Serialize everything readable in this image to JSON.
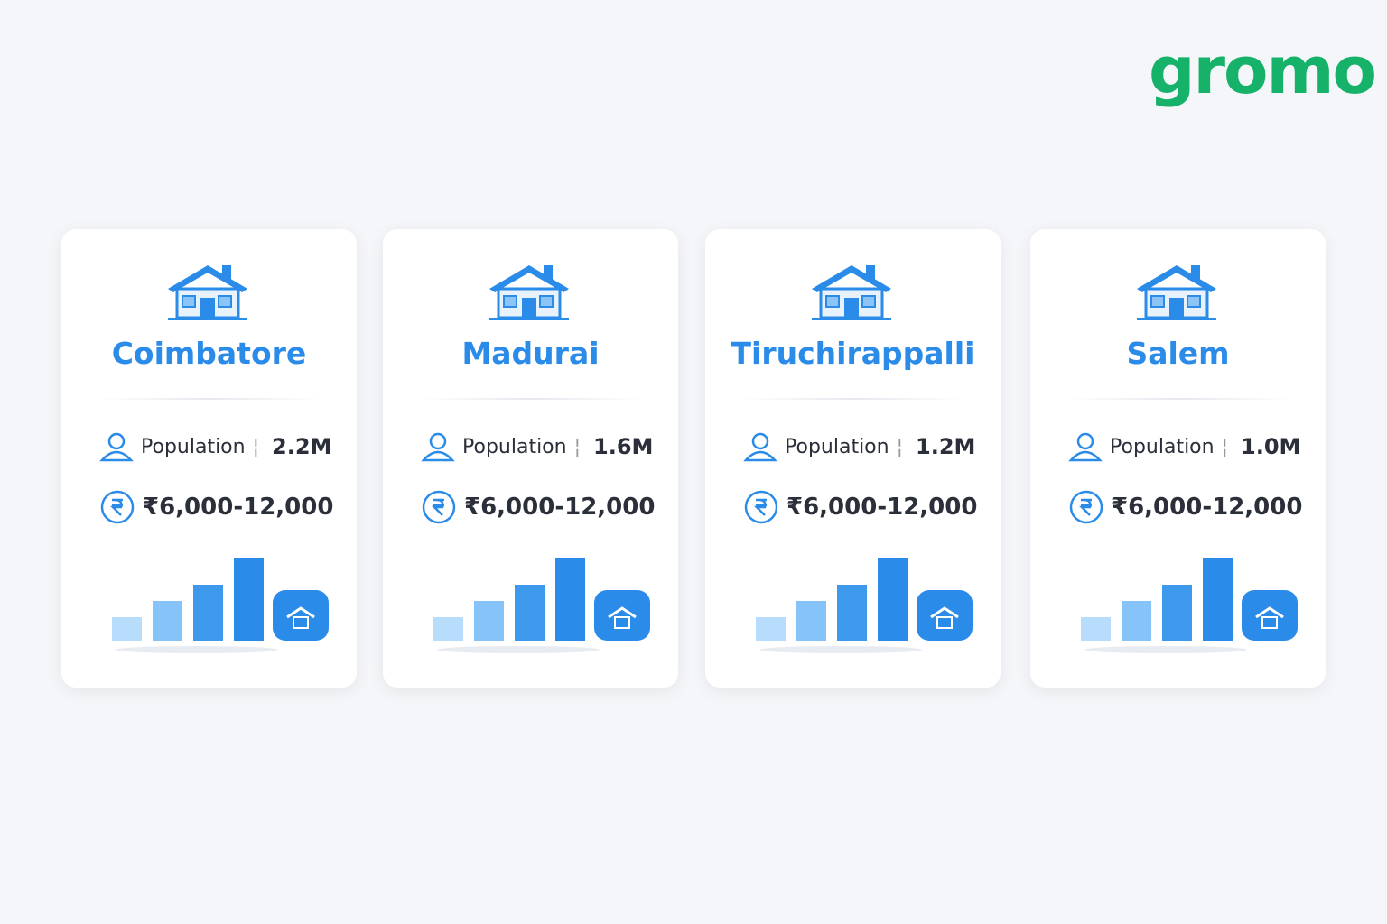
{
  "logo": "gromo",
  "cards": [
    {
      "city": "Coimbatore",
      "population_label": "Population",
      "population": "2.2M",
      "rent": "₹6,000-12,000"
    },
    {
      "city": "Madurai",
      "population_label": "Population",
      "population": "1.6M",
      "rent": "₹6,000-12,000"
    },
    {
      "city": "Tiruchirappalli",
      "population_label": "Population",
      "population": "1.2M",
      "rent": "₹6,000-12,000"
    },
    {
      "city": "Salem",
      "population_label": "Population",
      "population": "1.0M",
      "rent": "₹6,000-12,000"
    }
  ]
}
